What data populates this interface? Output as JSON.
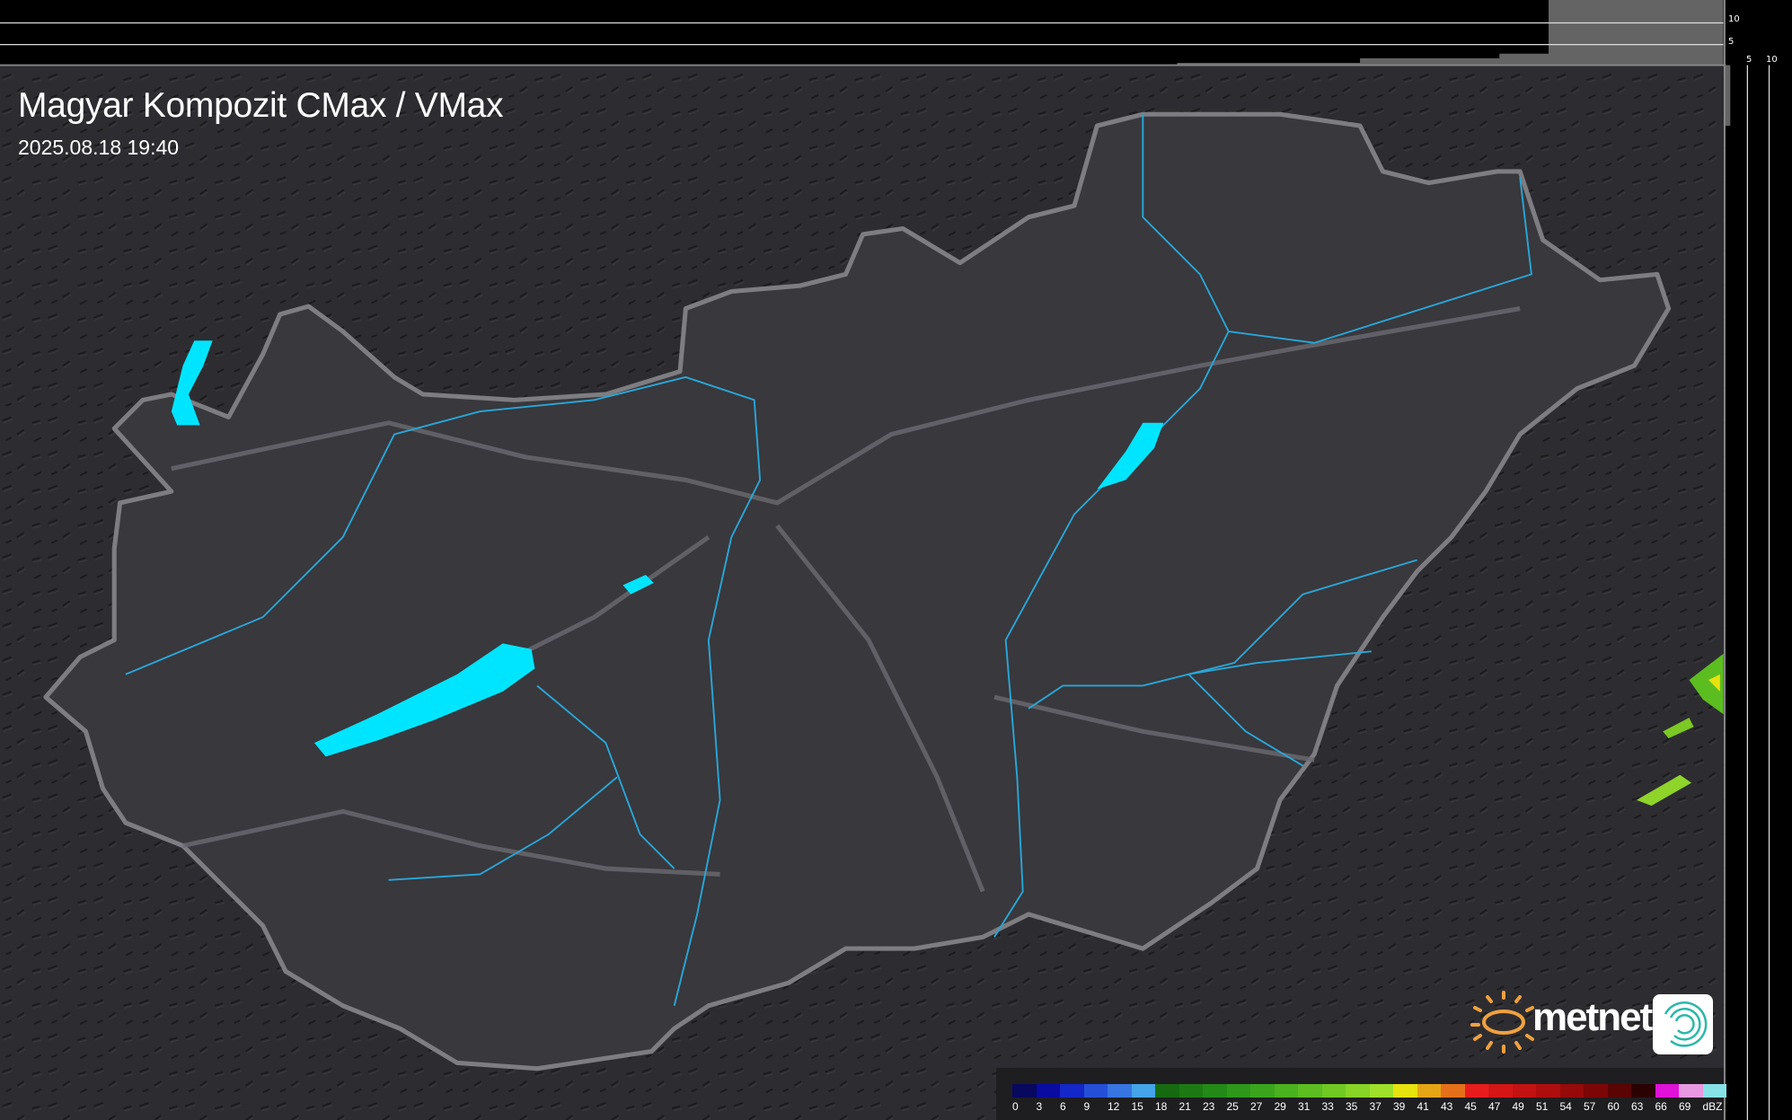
{
  "header": {
    "title": "Magyar Kompozit CMax / VMax",
    "timestamp": "2025.08.18 19:40"
  },
  "profile_axes": {
    "vertical_ticks": [
      "10",
      "5"
    ],
    "horizontal_ticks": [
      "5",
      "10"
    ]
  },
  "legend": {
    "unit": "dBZ",
    "labels": [
      "0",
      "3",
      "6",
      "9",
      "12",
      "15",
      "18",
      "21",
      "23",
      "25",
      "27",
      "29",
      "31",
      "33",
      "35",
      "37",
      "39",
      "41",
      "43",
      "45",
      "47",
      "49",
      "51",
      "54",
      "57",
      "60",
      "63",
      "66",
      "69"
    ],
    "colors": [
      "#07085e",
      "#0a0ba0",
      "#1427c8",
      "#2450d8",
      "#3775e0",
      "#45a3ea",
      "#166b10",
      "#1d7a12",
      "#238a18",
      "#2e981a",
      "#3aa51c",
      "#4ab21e",
      "#5cbd20",
      "#70c822",
      "#87d426",
      "#9ee02a",
      "#e8e20e",
      "#e6a514",
      "#e6701a",
      "#e81c1c",
      "#d41616",
      "#c21212",
      "#ae0e0e",
      "#960a0a",
      "#7c0606",
      "#5a0404",
      "#2a0202",
      "#e012d8",
      "#e898e0",
      "#86e2e6"
    ]
  },
  "branding": {
    "logo_text": "metnet",
    "accent": "#f0a040"
  },
  "colors": {
    "lakes": "#00e5ff",
    "rivers": "#2aa6d6",
    "border": "#8a8a8e",
    "background": "#2b2b2f"
  }
}
